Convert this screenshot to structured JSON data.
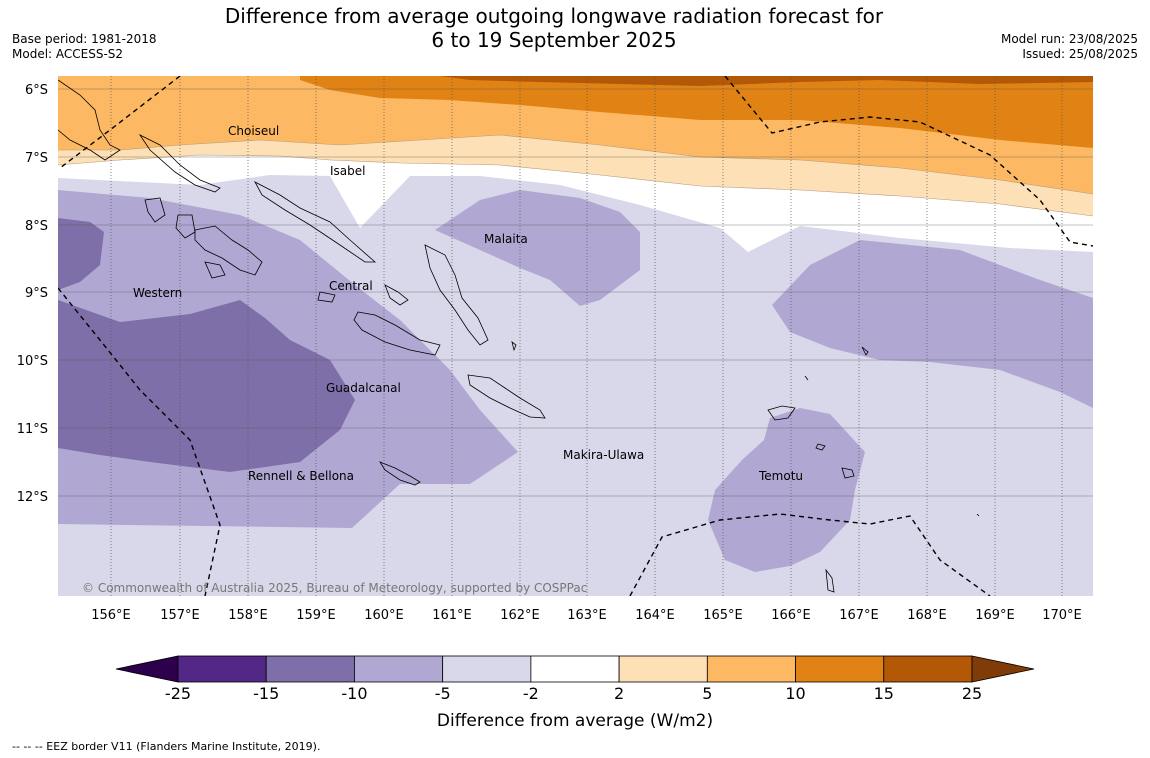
{
  "title_line1": "Difference from average outgoing longwave radiation forecast for",
  "title_line2": "6 to 19 September 2025",
  "base_period": "Base period: 1981-2018",
  "model": "Model: ACCESS-S2",
  "model_run": "Model run: 23/08/2025",
  "issued": "Issued: 25/08/2025",
  "credit": "© Commonwealth of Australia 2025, Bureau of Meteorology, supported by COSPPac",
  "footnote": "--  --  -- EEZ border V11 (Flanders Marine Institute, 2019).",
  "map": {
    "lon_ticks": [
      "156°E",
      "157°E",
      "158°E",
      "159°E",
      "160°E",
      "161°E",
      "162°E",
      "163°E",
      "164°E",
      "165°E",
      "166°E",
      "167°E",
      "168°E",
      "169°E",
      "170°E"
    ],
    "lat_ticks": [
      "6°S",
      "7°S",
      "8°S",
      "9°S",
      "10°S",
      "11°S",
      "12°S"
    ],
    "province_labels": [
      "Choiseul",
      "Isabel",
      "Malaita",
      "Western",
      "Central",
      "Guadalcanal",
      "Rennell & Bellona",
      "Makira-Ulawa",
      "Temotu"
    ]
  },
  "colorbar": {
    "ticks": [
      "-25",
      "-15",
      "-10",
      "-5",
      "-2",
      "2",
      "5",
      "10",
      "15",
      "25"
    ],
    "colors": [
      "#522785",
      "#7f6fa8",
      "#b0a8d2",
      "#d8d8ea",
      "#ffffff",
      "#fee0b6",
      "#fdb863",
      "#e08214",
      "#b35806"
    ],
    "under_color": "#2d004b",
    "over_color": "#7f3b08",
    "label": "Difference from average (W/m2)"
  }
}
